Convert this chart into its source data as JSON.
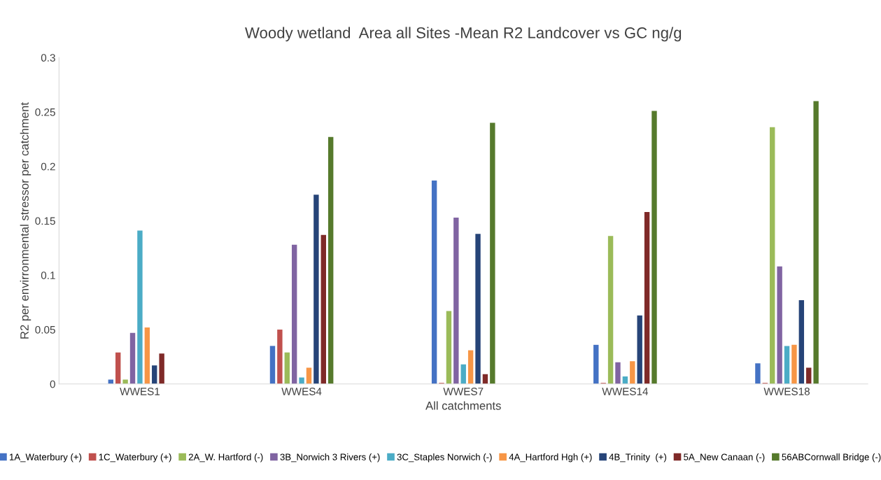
{
  "chart_data": {
    "type": "bar",
    "title": "Woody wetland  Area all Sites -Mean R2 Landcover vs GC ng/g",
    "xlabel": "All catchments",
    "ylabel": "R2 per envirronmental stressor per catchment",
    "categories": [
      "WWES1",
      "WWES4",
      "WWES7",
      "WWES14",
      "WWES18"
    ],
    "series": [
      {
        "name": "1A_Waterbury (+)",
        "color": "#4472c4",
        "values": [
          0.004,
          0.035,
          0.187,
          0.036,
          0.019
        ]
      },
      {
        "name": "1C_Waterbury (+)",
        "color": "#c0504d",
        "values": [
          0.029,
          0.05,
          0.001,
          0.001,
          0.001
        ]
      },
      {
        "name": "2A_W. Hartford (-)",
        "color": "#9bbb59",
        "values": [
          0.004,
          0.029,
          0.067,
          0.136,
          0.236
        ]
      },
      {
        "name": "3B_Norwich 3 Rivers (+)",
        "color": "#8064a2",
        "values": [
          0.047,
          0.128,
          0.153,
          0.02,
          0.108
        ]
      },
      {
        "name": "3C_Staples Norwich (-)",
        "color": "#4bacc6",
        "values": [
          0.141,
          0.006,
          0.018,
          0.007,
          0.035
        ]
      },
      {
        "name": "4A_Hartford Hgh (+)",
        "color": "#f79646",
        "values": [
          0.052,
          0.015,
          0.031,
          0.021,
          0.036
        ]
      },
      {
        "name": "4B_Trinity  (+)",
        "color": "#264478",
        "values": [
          0.017,
          0.174,
          0.138,
          0.063,
          0.077
        ]
      },
      {
        "name": "5A_New Canaan (-)",
        "color": "#7f2a28",
        "values": [
          0.028,
          0.137,
          0.009,
          0.158,
          0.015
        ]
      },
      {
        "name": "56ABCornwall Bridge (-)",
        "color": "#567a2c",
        "values": [
          null,
          0.227,
          0.24,
          0.251,
          0.26
        ]
      }
    ],
    "ylim": [
      0,
      0.3
    ],
    "yticks": [
      {
        "value": 0,
        "label": "0"
      },
      0.05,
      0.1,
      0.15,
      0.2,
      0.25,
      0.3
    ],
    "legend": "bottom",
    "grid": false
  }
}
